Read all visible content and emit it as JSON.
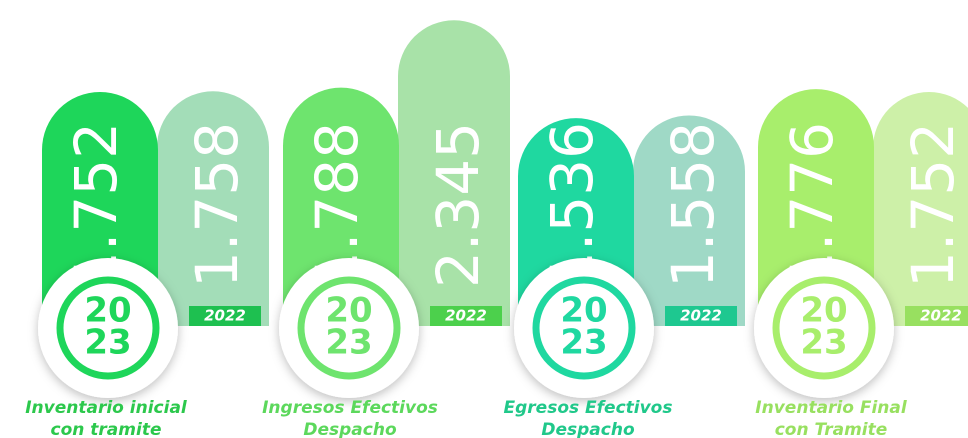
{
  "chart_data": {
    "type": "pill-bar",
    "categories": [
      [
        "Inventario inicial",
        "con tramite"
      ],
      [
        "Ingresos Efectivos",
        "Despacho"
      ],
      [
        "Egresos Efectivos",
        "Despacho"
      ],
      [
        "Inventario Final",
        "con Tramite"
      ]
    ],
    "series": [
      {
        "label_lines": [
          "20",
          "23"
        ],
        "colors": [
          "#1ed65a",
          "#6ee46e",
          "#1fd8a0",
          "#a8ee6c"
        ],
        "values": [
          1752,
          1788,
          1536,
          1776
        ],
        "value_labels": [
          "1.752",
          "1.788",
          "1.536",
          "1.776"
        ]
      },
      {
        "name": "2022",
        "colors": [
          "#a3ddb8",
          "#a8e2a8",
          "#9fd9c6",
          "#cdf0a8"
        ],
        "strip_colors": [
          "#1ec050",
          "#4cd04c",
          "#1ec890",
          "#98e060"
        ],
        "values": [
          1758,
          2345,
          1558,
          1752
        ],
        "value_labels": [
          "1.758",
          "2.345",
          "1.558",
          "1.752"
        ]
      }
    ],
    "category_colors": [
      "#2cc84c",
      "#5cd85c",
      "#20c88a",
      "#98e060"
    ]
  }
}
